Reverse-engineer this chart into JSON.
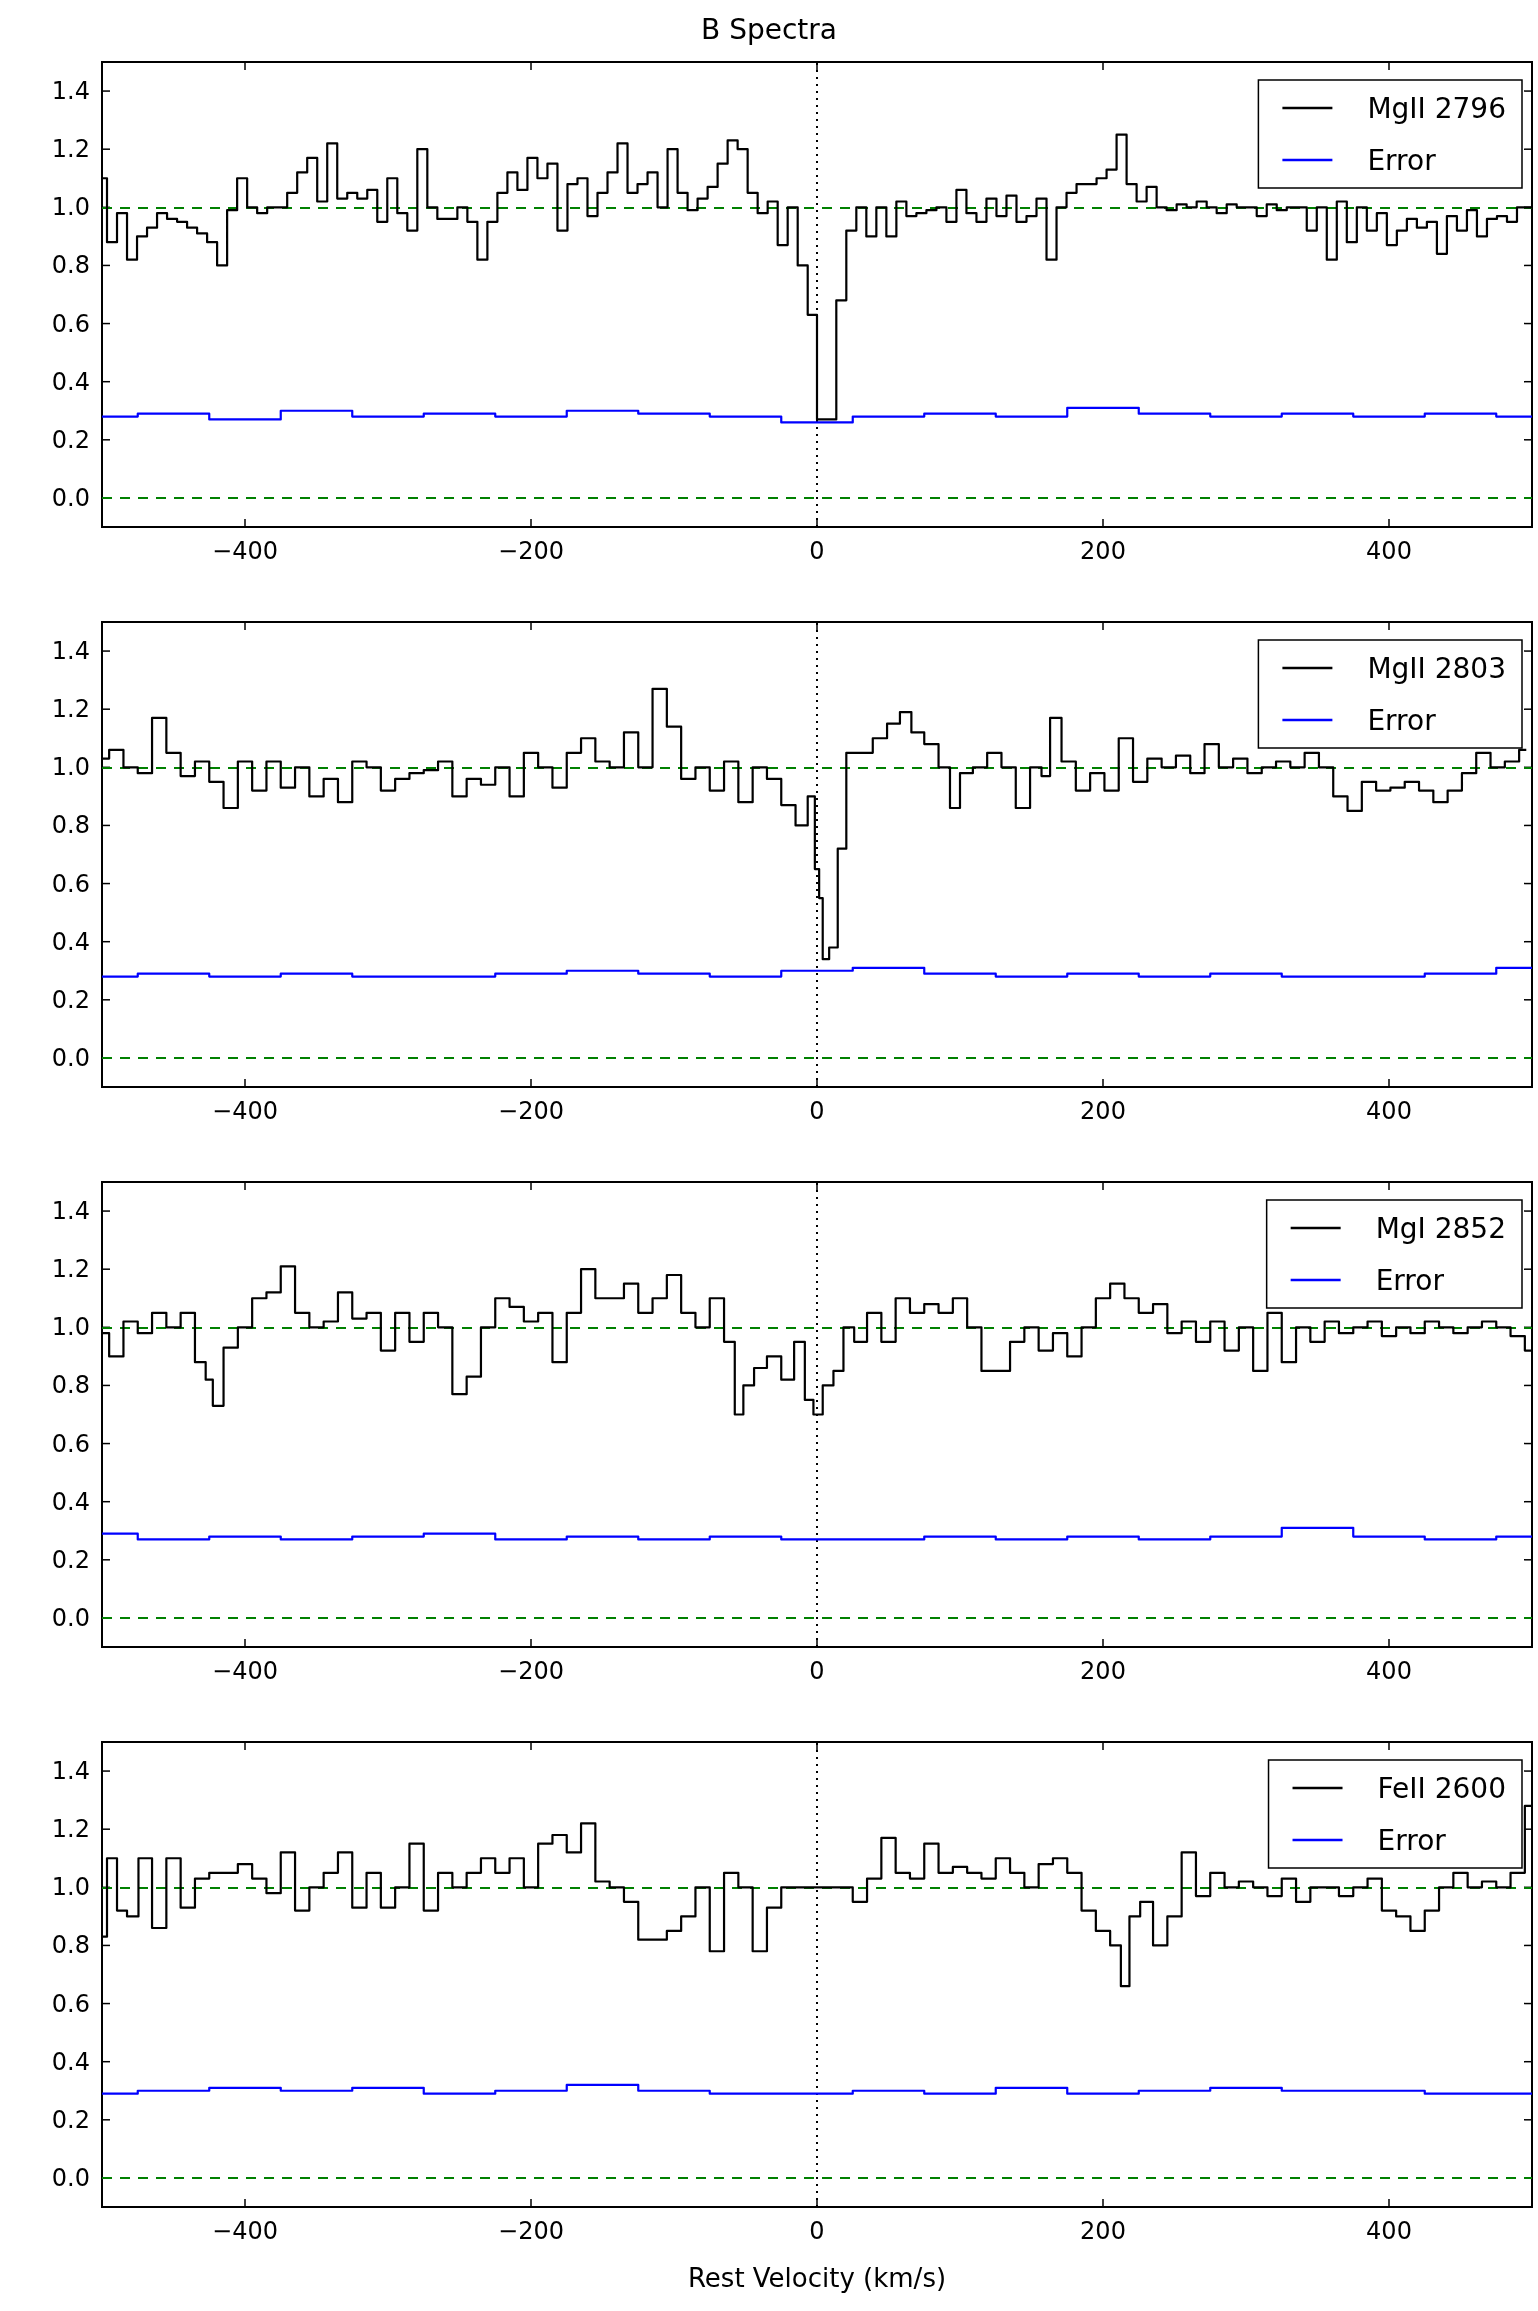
{
  "chart_data": [
    {
      "type": "step",
      "title": "B Spectra",
      "xlim": [
        -500,
        500
      ],
      "xticks": [
        -400,
        -200,
        0,
        200,
        400
      ],
      "ylim": [
        -0.1,
        1.5
      ],
      "yticks": [
        {
          "value": 0.0,
          "label": "0.0"
        },
        {
          "value": 0.2,
          "label": "0.2"
        },
        {
          "value": 0.4,
          "label": "0.4"
        },
        {
          "value": 0.6,
          "label": "0.6"
        },
        {
          "value": 0.8,
          "label": "0.8"
        },
        {
          "value": 1.0,
          "label": "1.0"
        },
        {
          "value": 1.2,
          "label": "1.2"
        },
        {
          "value": 1.4,
          "label": "1.4"
        }
      ],
      "legend": "top right",
      "grid": false,
      "ref_lines": [
        {
          "axis": "y",
          "value": 1,
          "color": "#008000",
          "line_style": "dashed"
        },
        {
          "axis": "y",
          "value": 0,
          "color": "#008000",
          "line_style": "dashed"
        },
        {
          "axis": "x",
          "value": 0,
          "color": "#000000",
          "line_style": "dotted"
        }
      ],
      "series": [
        {
          "name": "MgII 2796",
          "color": "#000000",
          "x": [
            -500,
            -493,
            -486,
            -479,
            -472,
            -465,
            -458,
            -451,
            -444,
            -437,
            -430,
            -423,
            -416,
            -409,
            -402,
            -395,
            -388,
            -381,
            -374,
            -367,
            -360,
            -353,
            -346,
            -339,
            -332,
            -325,
            -318,
            -311,
            -304,
            -297,
            -290,
            -283,
            -276,
            -269,
            -262,
            -255,
            -248,
            -241,
            -234,
            -227,
            -220,
            -213,
            -206,
            -199,
            -192,
            -185,
            -178,
            -171,
            -164,
            -157,
            -150,
            -143,
            -136,
            -129,
            -122,
            -115,
            -108,
            -101,
            -94,
            -87,
            -80,
            -73,
            -66,
            -59,
            -52,
            -45,
            -38,
            -31,
            -24,
            -17,
            -10,
            -3,
            3,
            10,
            17,
            24,
            31,
            38,
            45,
            52,
            59,
            66,
            73,
            80,
            87,
            94,
            101,
            108,
            115,
            122,
            129,
            136,
            143,
            150,
            157,
            164,
            171,
            178,
            185,
            192,
            199,
            206,
            213,
            220,
            227,
            234,
            241,
            248,
            255,
            262,
            269,
            276,
            283,
            290,
            297,
            304,
            311,
            318,
            325,
            332,
            339,
            346,
            353,
            360,
            367,
            374,
            381,
            388,
            395,
            402,
            409,
            416,
            423,
            430,
            437,
            444,
            451,
            458,
            465,
            472,
            479,
            486,
            493,
            500
          ],
          "values": [
            1.1,
            0.88,
            0.98,
            0.82,
            0.9,
            0.93,
            0.98,
            0.96,
            0.95,
            0.93,
            0.91,
            0.88,
            0.8,
            0.99,
            1.1,
            1.0,
            0.98,
            1.0,
            1.0,
            1.05,
            1.12,
            1.17,
            1.02,
            1.22,
            1.03,
            1.05,
            1.03,
            1.06,
            0.95,
            1.1,
            0.98,
            0.92,
            1.2,
            1.0,
            0.96,
            0.96,
            1.0,
            0.95,
            0.82,
            0.95,
            1.05,
            1.12,
            1.06,
            1.17,
            1.1,
            1.15,
            0.92,
            1.08,
            1.1,
            0.97,
            1.05,
            1.12,
            1.22,
            1.05,
            1.08,
            1.12,
            1.0,
            1.2,
            1.05,
            0.99,
            1.03,
            1.07,
            1.15,
            1.23,
            1.2,
            1.05,
            0.98,
            1.02,
            0.87,
            1.0,
            0.8,
            0.63,
            0.27,
            0.27,
            0.68,
            0.92,
            1.0,
            0.9,
            1.0,
            0.9,
            1.02,
            0.97,
            0.98,
            0.99,
            1.0,
            0.95,
            1.06,
            0.98,
            0.95,
            1.03,
            0.97,
            1.04,
            0.95,
            0.97,
            1.03,
            0.82,
            1.0,
            1.05,
            1.08,
            1.08,
            1.1,
            1.13,
            1.25,
            1.08,
            1.02,
            1.07,
            1.0,
            0.99,
            1.01,
            1.0,
            1.02,
            1.0,
            0.98,
            1.01,
            1.0,
            1.0,
            0.97,
            1.01,
            0.99,
            1.0,
            1.0,
            0.92,
            1.0,
            0.82,
            1.02,
            0.88,
            1.0,
            0.92,
            0.98,
            0.87,
            0.92,
            0.96,
            0.93,
            0.95,
            0.84,
            0.97,
            0.92,
            0.99,
            0.9,
            0.96,
            0.97,
            0.95,
            1.0,
            1.0
          ]
        },
        {
          "name": "Error",
          "color": "#0000ff",
          "x": [
            -500,
            -450,
            -400,
            -350,
            -300,
            -250,
            -200,
            -150,
            -100,
            -50,
            0,
            50,
            100,
            150,
            200,
            250,
            300,
            350,
            400,
            450,
            500
          ],
          "values": [
            0.28,
            0.29,
            0.27,
            0.3,
            0.28,
            0.29,
            0.28,
            0.3,
            0.29,
            0.28,
            0.26,
            0.28,
            0.29,
            0.28,
            0.31,
            0.29,
            0.28,
            0.29,
            0.28,
            0.29,
            0.28
          ]
        }
      ]
    },
    {
      "type": "step",
      "xlim": [
        -500,
        500
      ],
      "xticks": [
        -400,
        -200,
        0,
        200,
        400
      ],
      "ylim": [
        -0.1,
        1.5
      ],
      "yticks": [
        {
          "value": 0,
          "label": "0.0"
        },
        0.2,
        0.4,
        0.6,
        0.8,
        {
          "value": 1,
          "label": "1.0"
        },
        1.2,
        1.4
      ],
      "legend": "top right",
      "grid": false,
      "ref_lines": [
        {
          "axis": "y",
          "value": 1,
          "color": "#008000",
          "line_style": "dashed"
        },
        {
          "axis": "y",
          "value": 0,
          "color": "#008000",
          "line_style": "dashed"
        },
        {
          "axis": "x",
          "value": 0,
          "color": "#000000",
          "line_style": "dotted"
        }
      ],
      "series": [
        {
          "name": "MgII 2803",
          "color": "#000000",
          "x": [
            -500,
            -490,
            -480,
            -470,
            -460,
            -450,
            -440,
            -430,
            -420,
            -410,
            -400,
            -390,
            -380,
            -370,
            -360,
            -350,
            -340,
            -330,
            -320,
            -310,
            -300,
            -290,
            -280,
            -270,
            -260,
            -250,
            -240,
            -230,
            -220,
            -210,
            -200,
            -190,
            -180,
            -170,
            -160,
            -150,
            -140,
            -130,
            -120,
            -110,
            -100,
            -90,
            -80,
            -70,
            -60,
            -50,
            -40,
            -30,
            -20,
            -10,
            -3,
            0,
            3,
            5,
            12,
            17,
            24,
            34,
            44,
            54,
            62,
            70,
            80,
            90,
            96,
            104,
            114,
            124,
            134,
            144,
            154,
            160,
            166,
            176,
            186,
            196,
            206,
            216,
            226,
            236,
            246,
            256,
            266,
            276,
            286,
            296,
            306,
            316,
            326,
            336,
            346,
            356,
            366,
            376,
            386,
            396,
            406,
            416,
            426,
            436,
            446,
            456,
            466,
            476,
            486,
            496
          ],
          "values": [
            1.03,
            1.06,
            1.0,
            0.98,
            1.17,
            1.05,
            0.97,
            1.02,
            0.95,
            0.86,
            1.02,
            0.92,
            1.02,
            0.93,
            1.0,
            0.9,
            0.96,
            0.88,
            1.02,
            1.0,
            0.92,
            0.96,
            0.98,
            0.99,
            1.02,
            0.9,
            0.96,
            0.94,
            1.0,
            0.9,
            1.05,
            1.0,
            0.93,
            1.05,
            1.1,
            1.02,
            1.0,
            1.12,
            1.0,
            1.27,
            1.14,
            0.96,
            1.0,
            0.92,
            1.02,
            0.88,
            1.0,
            0.96,
            0.87,
            0.8,
            0.9,
            0.65,
            0.55,
            0.34,
            0.38,
            0.72,
            1.05,
            1.05,
            1.1,
            1.15,
            1.19,
            1.12,
            1.08,
            1.0,
            0.86,
            0.98,
            1.0,
            1.05,
            1.0,
            0.86,
            1.0,
            0.97,
            1.17,
            1.02,
            0.92,
            0.98,
            0.92,
            1.1,
            0.95,
            1.03,
            1.0,
            1.04,
            0.98,
            1.08,
            1.0,
            1.03,
            0.98,
            1.0,
            1.02,
            1.0,
            1.05,
            1.0,
            0.9,
            0.85,
            0.95,
            0.92,
            0.93,
            0.95,
            0.92,
            0.88,
            0.92,
            0.98,
            1.05,
            1.0,
            1.02,
            1.06
          ]
        },
        {
          "name": "Error",
          "color": "#0000ff",
          "x": [
            -500,
            -450,
            -400,
            -350,
            -300,
            -250,
            -200,
            -150,
            -100,
            -50,
            0,
            50,
            100,
            150,
            200,
            250,
            300,
            350,
            400,
            450,
            500
          ],
          "values": [
            0.28,
            0.29,
            0.28,
            0.29,
            0.28,
            0.28,
            0.29,
            0.3,
            0.29,
            0.28,
            0.3,
            0.31,
            0.29,
            0.28,
            0.29,
            0.28,
            0.29,
            0.28,
            0.28,
            0.29,
            0.31
          ]
        }
      ]
    },
    {
      "type": "step",
      "xlim": [
        -500,
        500
      ],
      "xticks": [
        -400,
        -200,
        0,
        200,
        400
      ],
      "ylim": [
        -0.1,
        1.5
      ],
      "yticks": [
        {
          "value": 0,
          "label": "0.0"
        },
        0.2,
        0.4,
        0.6,
        0.8,
        {
          "value": 1,
          "label": "1.0"
        },
        1.2,
        1.4
      ],
      "legend": "top right",
      "grid": false,
      "ref_lines": [
        {
          "axis": "y",
          "value": 1,
          "color": "#008000",
          "line_style": "dashed"
        },
        {
          "axis": "y",
          "value": 0,
          "color": "#008000",
          "line_style": "dashed"
        },
        {
          "axis": "x",
          "value": 0,
          "color": "#000000",
          "line_style": "dotted"
        }
      ],
      "series": [
        {
          "name": "MgI 2852",
          "color": "#000000",
          "x": [
            -500,
            -490,
            -480,
            -470,
            -460,
            -450,
            -440,
            -430,
            -425,
            -420,
            -410,
            -400,
            -390,
            -380,
            -370,
            -360,
            -350,
            -340,
            -330,
            -320,
            -310,
            -300,
            -290,
            -280,
            -270,
            -260,
            -250,
            -240,
            -230,
            -220,
            -210,
            -200,
            -190,
            -180,
            -170,
            -160,
            -150,
            -140,
            -130,
            -120,
            -110,
            -100,
            -90,
            -80,
            -70,
            -60,
            -55,
            -48,
            -40,
            -30,
            -20,
            -12,
            -5,
            0,
            8,
            15,
            22,
            30,
            40,
            50,
            60,
            70,
            80,
            90,
            100,
            110,
            120,
            130,
            140,
            150,
            160,
            170,
            180,
            190,
            200,
            210,
            220,
            230,
            240,
            250,
            260,
            270,
            280,
            290,
            300,
            310,
            320,
            330,
            340,
            350,
            360,
            370,
            380,
            390,
            400,
            410,
            420,
            430,
            440,
            450,
            460,
            470,
            480,
            490,
            500
          ],
          "values": [
            0.98,
            0.9,
            1.02,
            0.98,
            1.05,
            1.0,
            1.05,
            0.88,
            0.82,
            0.73,
            0.93,
            1.0,
            1.1,
            1.12,
            1.21,
            1.05,
            1.0,
            1.02,
            1.12,
            1.03,
            1.05,
            0.92,
            1.05,
            0.95,
            1.05,
            1.0,
            0.77,
            0.83,
            1.0,
            1.1,
            1.07,
            1.02,
            1.05,
            0.88,
            1.05,
            1.2,
            1.1,
            1.1,
            1.15,
            1.05,
            1.1,
            1.18,
            1.05,
            1.0,
            1.1,
            0.95,
            0.7,
            0.8,
            0.86,
            0.9,
            0.82,
            0.95,
            0.75,
            0.7,
            0.8,
            0.85,
            1.0,
            0.95,
            1.05,
            0.95,
            1.1,
            1.05,
            1.08,
            1.05,
            1.1,
            1.0,
            0.85,
            0.85,
            0.95,
            1.0,
            0.92,
            0.98,
            0.9,
            1.0,
            1.1,
            1.15,
            1.1,
            1.05,
            1.08,
            0.98,
            1.02,
            0.95,
            1.02,
            0.92,
            1.0,
            0.85,
            1.05,
            0.88,
            1.0,
            0.95,
            1.02,
            0.98,
            1.0,
            1.02,
            0.97,
            1.0,
            0.98,
            1.02,
            1.0,
            0.98,
            1.0,
            1.02,
            1.0,
            0.97,
            0.92
          ]
        },
        {
          "name": "Error",
          "color": "#0000ff",
          "x": [
            -500,
            -450,
            -400,
            -350,
            -300,
            -250,
            -200,
            -150,
            -100,
            -50,
            0,
            50,
            100,
            150,
            200,
            250,
            300,
            350,
            400,
            450,
            500
          ],
          "values": [
            0.29,
            0.27,
            0.28,
            0.27,
            0.28,
            0.29,
            0.27,
            0.28,
            0.27,
            0.28,
            0.27,
            0.27,
            0.28,
            0.27,
            0.28,
            0.27,
            0.28,
            0.31,
            0.28,
            0.27,
            0.28
          ]
        }
      ]
    },
    {
      "type": "step",
      "xlabel": "Rest Velocity (km/s)",
      "xlim": [
        -500,
        500
      ],
      "xticks": [
        -400,
        -200,
        0,
        200,
        400
      ],
      "ylim": [
        -0.1,
        1.5
      ],
      "yticks": [
        {
          "value": 0,
          "label": "0.0"
        },
        0.2,
        0.4,
        0.6,
        0.8,
        {
          "value": 1,
          "label": "1.0"
        },
        1.2,
        1.4
      ],
      "legend": "top right",
      "grid": false,
      "ref_lines": [
        {
          "axis": "y",
          "value": 1,
          "color": "#008000",
          "line_style": "dashed"
        },
        {
          "axis": "y",
          "value": 0,
          "color": "#008000",
          "line_style": "dashed"
        },
        {
          "axis": "x",
          "value": 0,
          "color": "#000000",
          "line_style": "dotted"
        }
      ],
      "series": [
        {
          "name": "FeII 2600",
          "color": "#000000",
          "x": [
            -500,
            -493,
            -486,
            -479,
            -470,
            -460,
            -450,
            -440,
            -430,
            -420,
            -410,
            -400,
            -390,
            -380,
            -370,
            -360,
            -350,
            -340,
            -330,
            -320,
            -310,
            -300,
            -290,
            -280,
            -270,
            -260,
            -250,
            -240,
            -230,
            -220,
            -210,
            -200,
            -190,
            -180,
            -170,
            -160,
            -150,
            -140,
            -130,
            -120,
            -110,
            -100,
            -90,
            -80,
            -70,
            -60,
            -50,
            -40,
            -30,
            -20,
            -10,
            0,
            10,
            20,
            30,
            40,
            50,
            60,
            70,
            80,
            90,
            100,
            110,
            120,
            130,
            140,
            150,
            160,
            170,
            180,
            190,
            200,
            210,
            215,
            222,
            230,
            240,
            250,
            260,
            270,
            280,
            290,
            300,
            310,
            320,
            330,
            340,
            350,
            360,
            370,
            380,
            390,
            400,
            410,
            420,
            430,
            440,
            450,
            460,
            470,
            480,
            490,
            500
          ],
          "values": [
            0.83,
            1.1,
            0.92,
            0.9,
            1.1,
            0.86,
            1.1,
            0.93,
            1.03,
            1.05,
            1.05,
            1.08,
            1.03,
            0.98,
            1.12,
            0.92,
            1.0,
            1.05,
            1.12,
            0.93,
            1.05,
            0.93,
            1.0,
            1.15,
            0.92,
            1.05,
            1.0,
            1.05,
            1.1,
            1.05,
            1.1,
            1.0,
            1.15,
            1.18,
            1.12,
            1.22,
            1.02,
            1.0,
            0.95,
            0.82,
            0.82,
            0.85,
            0.9,
            1.0,
            0.78,
            1.05,
            1.0,
            0.78,
            0.93,
            1.0,
            1.0,
            1.0,
            1.0,
            1.0,
            0.95,
            1.03,
            1.17,
            1.05,
            1.03,
            1.15,
            1.05,
            1.07,
            1.05,
            1.03,
            1.1,
            1.05,
            1.0,
            1.08,
            1.1,
            1.05,
            0.92,
            0.85,
            0.8,
            0.66,
            0.9,
            0.95,
            0.8,
            0.9,
            1.12,
            0.97,
            1.05,
            1.0,
            1.02,
            1.0,
            0.97,
            1.03,
            0.95,
            1.0,
            1.0,
            0.97,
            1.0,
            1.03,
            0.92,
            0.9,
            0.85,
            0.92,
            1.0,
            1.05,
            1.0,
            1.02,
            1.0,
            1.05,
            1.28
          ]
        },
        {
          "name": "Error",
          "color": "#0000ff",
          "x": [
            -500,
            -450,
            -400,
            -350,
            -300,
            -250,
            -200,
            -150,
            -100,
            -50,
            0,
            50,
            100,
            150,
            200,
            250,
            300,
            350,
            400,
            450,
            500
          ],
          "values": [
            0.29,
            0.3,
            0.31,
            0.3,
            0.31,
            0.29,
            0.3,
            0.32,
            0.3,
            0.29,
            0.29,
            0.3,
            0.29,
            0.31,
            0.29,
            0.3,
            0.31,
            0.3,
            0.3,
            0.29,
            0.29
          ]
        }
      ]
    }
  ]
}
